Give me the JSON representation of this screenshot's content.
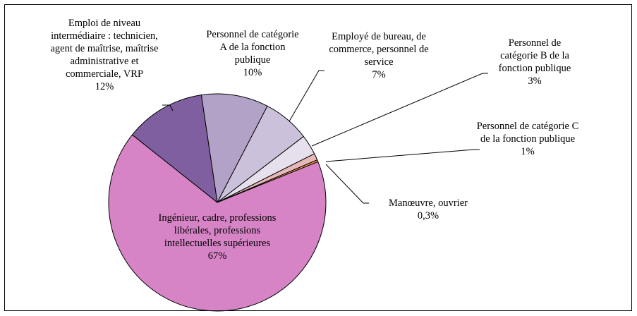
{
  "chart_data": {
    "type": "pie",
    "categories": [
      "Ingénieur, cadre, professions libérales, professions intellectuelles supérieures",
      "Emploi de niveau intermédiaire : technicien, agent de maîtrise, maîtrise administrative et commerciale, VRP",
      "Personnel de catégorie A de la fonction publique",
      "Employé de bureau, de commerce, personnel de service",
      "Personnel de catégorie B de la fonction publique",
      "Personnel de catégorie C de la fonction publique",
      "Manœuvre, ouvrier"
    ],
    "values": [
      67,
      12,
      10,
      7,
      3,
      1,
      0.3
    ],
    "value_labels": [
      "67%",
      "12%",
      "10%",
      "7%",
      "3%",
      "1%",
      "0,3%"
    ],
    "colors": [
      "#d684c6",
      "#7f5f9f",
      "#b3a2c7",
      "#ccc1da",
      "#e6e0ec",
      "#e6b9b8",
      "#f79646"
    ]
  }
}
